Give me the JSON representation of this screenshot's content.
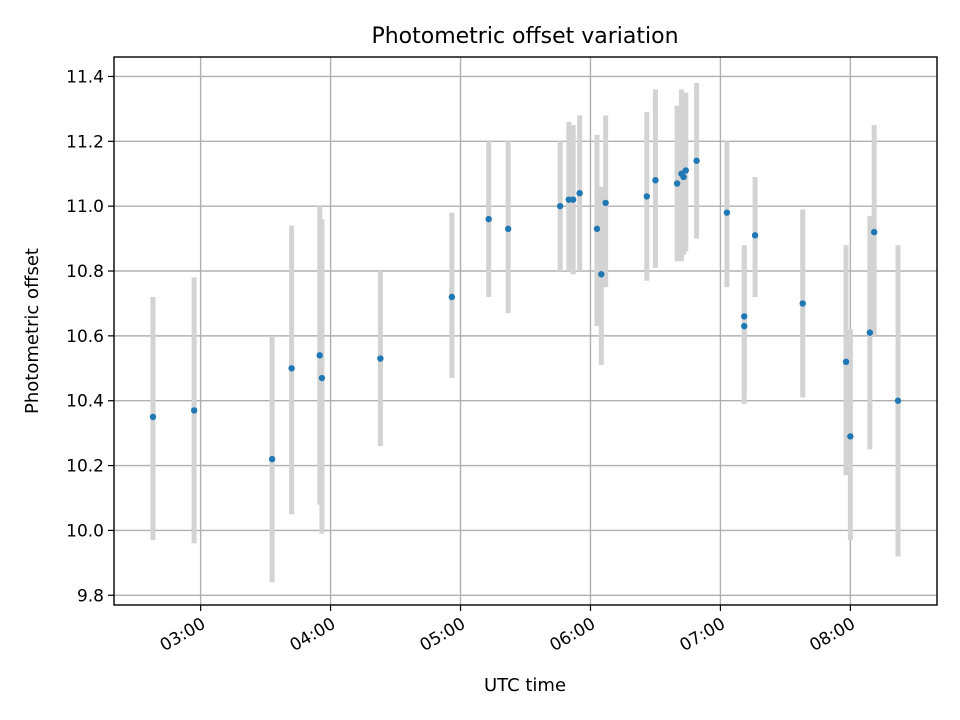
{
  "chart_data": {
    "type": "scatter",
    "title": "Photometric offset variation",
    "xlabel": "UTC time",
    "ylabel": "Photometric offset",
    "x_is_time": true,
    "xlim": [
      "02:20",
      "08:40"
    ],
    "ylim": [
      9.77,
      11.46
    ],
    "xticks": [
      "03:00",
      "04:00",
      "05:00",
      "06:00",
      "07:00",
      "08:00"
    ],
    "yticks": [
      9.8,
      10.0,
      10.2,
      10.4,
      10.6,
      10.8,
      11.0,
      11.2,
      11.4
    ],
    "grid": true,
    "legend": "none",
    "colors": {
      "marker": "#1f77b4",
      "errorbar": "#d3d3d3"
    },
    "series": [
      {
        "points": [
          {
            "x": "02:38",
            "y": 10.35,
            "lo": 9.97,
            "hi": 10.72
          },
          {
            "x": "02:57",
            "y": 10.37,
            "lo": 9.96,
            "hi": 10.78
          },
          {
            "x": "03:33",
            "y": 10.22,
            "lo": 9.84,
            "hi": 10.6
          },
          {
            "x": "03:42",
            "y": 10.5,
            "lo": 10.05,
            "hi": 10.94
          },
          {
            "x": "03:55",
            "y": 10.54,
            "lo": 10.08,
            "hi": 11.0
          },
          {
            "x": "03:56",
            "y": 10.47,
            "lo": 9.99,
            "hi": 10.96
          },
          {
            "x": "04:23",
            "y": 10.53,
            "lo": 10.26,
            "hi": 10.8
          },
          {
            "x": "04:56",
            "y": 10.72,
            "lo": 10.47,
            "hi": 10.98
          },
          {
            "x": "05:13",
            "y": 10.96,
            "lo": 10.72,
            "hi": 11.2
          },
          {
            "x": "05:22",
            "y": 10.93,
            "lo": 10.67,
            "hi": 11.2
          },
          {
            "x": "05:46",
            "y": 11.0,
            "lo": 10.8,
            "hi": 11.2
          },
          {
            "x": "05:50",
            "y": 11.02,
            "lo": 10.8,
            "hi": 11.26
          },
          {
            "x": "05:52",
            "y": 11.02,
            "lo": 10.79,
            "hi": 11.25
          },
          {
            "x": "05:55",
            "y": 11.04,
            "lo": 10.8,
            "hi": 11.28
          },
          {
            "x": "06:03",
            "y": 10.93,
            "lo": 10.63,
            "hi": 11.22
          },
          {
            "x": "06:05",
            "y": 10.79,
            "lo": 10.51,
            "hi": 11.06
          },
          {
            "x": "06:07",
            "y": 11.01,
            "lo": 10.75,
            "hi": 11.28
          },
          {
            "x": "06:26",
            "y": 11.03,
            "lo": 10.77,
            "hi": 11.29
          },
          {
            "x": "06:30",
            "y": 11.08,
            "lo": 10.81,
            "hi": 11.36
          },
          {
            "x": "06:40",
            "y": 11.07,
            "lo": 10.83,
            "hi": 11.31
          },
          {
            "x": "06:42",
            "y": 11.1,
            "lo": 10.83,
            "hi": 11.36
          },
          {
            "x": "06:43",
            "y": 11.09,
            "lo": 10.85,
            "hi": 11.33
          },
          {
            "x": "06:44",
            "y": 11.11,
            "lo": 10.86,
            "hi": 11.35
          },
          {
            "x": "06:49",
            "y": 11.14,
            "lo": 10.9,
            "hi": 11.38
          },
          {
            "x": "07:03",
            "y": 10.98,
            "lo": 10.75,
            "hi": 11.2
          },
          {
            "x": "07:11",
            "y": 10.63,
            "lo": 10.39,
            "hi": 10.87
          },
          {
            "x": "07:11",
            "y": 10.66,
            "lo": 10.44,
            "hi": 10.88
          },
          {
            "x": "07:16",
            "y": 10.91,
            "lo": 10.72,
            "hi": 11.09
          },
          {
            "x": "07:38",
            "y": 10.7,
            "lo": 10.41,
            "hi": 10.99
          },
          {
            "x": "07:58",
            "y": 10.52,
            "lo": 10.17,
            "hi": 10.88
          },
          {
            "x": "08:00",
            "y": 10.29,
            "lo": 9.97,
            "hi": 10.62
          },
          {
            "x": "08:09",
            "y": 10.61,
            "lo": 10.25,
            "hi": 10.97
          },
          {
            "x": "08:11",
            "y": 10.92,
            "lo": 10.6,
            "hi": 11.25
          },
          {
            "x": "08:22",
            "y": 10.4,
            "lo": 9.92,
            "hi": 10.88
          }
        ]
      }
    ]
  }
}
